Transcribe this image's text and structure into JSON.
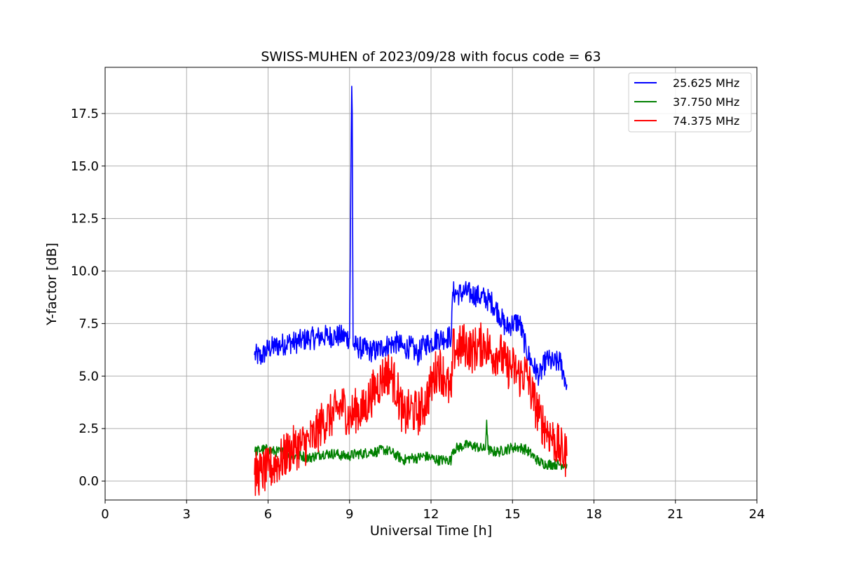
{
  "chart_data": {
    "type": "line",
    "title": "SWISS-MUHEN of 2023/09/28 with focus code = 63",
    "xlabel": "Universal Time [h]",
    "ylabel": "Y-factor [dB]",
    "xlim": [
      0,
      24
    ],
    "ylim": [
      -0.9,
      19.7
    ],
    "xticks": [
      0,
      3,
      6,
      9,
      12,
      15,
      18,
      21,
      24
    ],
    "xtick_labels": [
      "0",
      "3",
      "6",
      "9",
      "12",
      "15",
      "18",
      "21",
      "24"
    ],
    "yticks": [
      0,
      2.5,
      5,
      7.5,
      10,
      12.5,
      15,
      17.5
    ],
    "ytick_labels": [
      "0.0",
      "2.5",
      "5.0",
      "7.5",
      "10.0",
      "12.5",
      "15.0",
      "17.5"
    ],
    "grid": true,
    "legend_position": "top-right",
    "series": [
      {
        "name": "25.625 MHz",
        "color": "#0000ff",
        "x": [
          5.5,
          5.75,
          6.0,
          6.25,
          6.5,
          6.75,
          7.0,
          7.25,
          7.5,
          7.75,
          8.0,
          8.25,
          8.5,
          8.75,
          9.0,
          9.08,
          9.1,
          9.13,
          9.25,
          9.5,
          9.75,
          10.0,
          10.25,
          10.5,
          10.75,
          11.0,
          11.25,
          11.5,
          11.75,
          12.0,
          12.25,
          12.5,
          12.75,
          12.8,
          13.0,
          13.25,
          13.5,
          13.75,
          14.0,
          14.25,
          14.5,
          14.75,
          15.0,
          15.25,
          15.5,
          15.75,
          16.0,
          16.25,
          16.5,
          16.75,
          17.0
        ],
        "y": [
          6.0,
          5.9,
          6.3,
          6.4,
          6.5,
          6.6,
          6.6,
          6.7,
          6.8,
          6.8,
          6.9,
          6.9,
          6.9,
          6.9,
          6.8,
          18.8,
          17.5,
          6.5,
          6.4,
          6.3,
          6.2,
          6.2,
          6.4,
          6.5,
          6.6,
          6.3,
          6.4,
          6.0,
          6.5,
          6.6,
          6.8,
          6.8,
          6.9,
          9.0,
          8.9,
          9.0,
          8.9,
          8.8,
          8.7,
          8.5,
          8.0,
          7.3,
          7.5,
          7.6,
          6.3,
          5.5,
          5.0,
          5.8,
          5.6,
          5.7,
          4.6
        ]
      },
      {
        "name": "37.750 MHz",
        "color": "#008000",
        "x": [
          5.5,
          5.75,
          6.0,
          6.25,
          6.5,
          6.75,
          7.0,
          7.25,
          7.5,
          7.75,
          8.0,
          8.25,
          8.5,
          8.75,
          9.0,
          9.25,
          9.5,
          9.75,
          10.0,
          10.25,
          10.5,
          10.75,
          11.0,
          11.25,
          11.5,
          11.75,
          12.0,
          12.25,
          12.5,
          12.75,
          12.8,
          13.0,
          13.25,
          13.5,
          13.75,
          14.0,
          14.05,
          14.1,
          14.25,
          14.5,
          14.75,
          15.0,
          15.25,
          15.5,
          15.75,
          16.0,
          16.25,
          16.5,
          16.75,
          17.0
        ],
        "y": [
          1.4,
          1.5,
          1.5,
          1.4,
          1.4,
          1.3,
          1.2,
          1.2,
          1.1,
          1.2,
          1.3,
          1.3,
          1.3,
          1.2,
          1.2,
          1.3,
          1.3,
          1.4,
          1.4,
          1.5,
          1.4,
          1.2,
          1.0,
          1.1,
          1.1,
          1.2,
          1.1,
          1.0,
          1.0,
          1.0,
          1.5,
          1.6,
          1.7,
          1.7,
          1.6,
          1.5,
          2.9,
          1.5,
          1.4,
          1.4,
          1.5,
          1.6,
          1.6,
          1.5,
          1.2,
          0.9,
          0.8,
          0.8,
          0.8,
          0.8
        ]
      },
      {
        "name": "74.375 MHz",
        "color": "#ff0000",
        "x": [
          5.5,
          5.75,
          6.0,
          6.25,
          6.5,
          6.75,
          7.0,
          7.25,
          7.5,
          7.75,
          8.0,
          8.25,
          8.5,
          8.75,
          9.0,
          9.25,
          9.5,
          9.75,
          10.0,
          10.25,
          10.5,
          10.75,
          11.0,
          11.25,
          11.5,
          11.75,
          12.0,
          12.25,
          12.5,
          12.75,
          12.8,
          13.0,
          13.25,
          13.5,
          13.75,
          14.0,
          14.25,
          14.5,
          14.75,
          15.0,
          15.25,
          15.5,
          15.75,
          16.0,
          16.25,
          16.5,
          16.75,
          17.0
        ],
        "y": [
          0.3,
          0.4,
          0.5,
          0.8,
          1.0,
          1.4,
          1.6,
          1.7,
          1.9,
          2.2,
          2.8,
          3.0,
          3.3,
          3.6,
          3.0,
          3.4,
          3.3,
          4.0,
          4.5,
          5.0,
          5.2,
          4.3,
          3.0,
          3.4,
          3.2,
          3.6,
          4.5,
          5.5,
          5.0,
          4.0,
          6.2,
          6.3,
          6.5,
          6.2,
          6.4,
          6.6,
          6.0,
          6.2,
          5.5,
          5.4,
          5.0,
          5.2,
          4.0,
          3.0,
          2.5,
          2.0,
          1.5,
          1.2
        ]
      }
    ]
  }
}
